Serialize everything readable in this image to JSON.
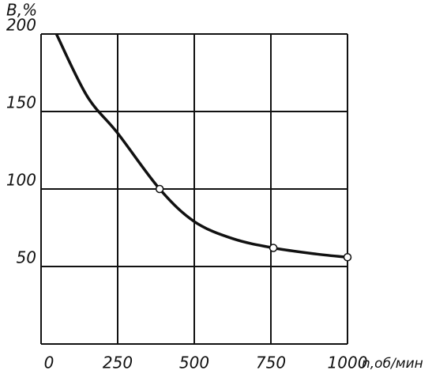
{
  "chart_data": {
    "type": "line",
    "y_label": "B,%",
    "x_label": "n,об/мин",
    "x": [
      50,
      150,
      250,
      387,
      500,
      625,
      758,
      900,
      1000
    ],
    "values": [
      200,
      160,
      136,
      100,
      79,
      68,
      62,
      58,
      56
    ],
    "points": {
      "x": [
        387,
        758,
        1000
      ],
      "y": [
        100,
        62,
        56
      ]
    },
    "color": "#111111",
    "xlim": [
      0,
      1000
    ],
    "ylim": [
      0,
      200
    ],
    "xticks": [
      0,
      250,
      500,
      750,
      1000
    ],
    "yticks": [
      50,
      100,
      150,
      200
    ],
    "grid": true
  }
}
